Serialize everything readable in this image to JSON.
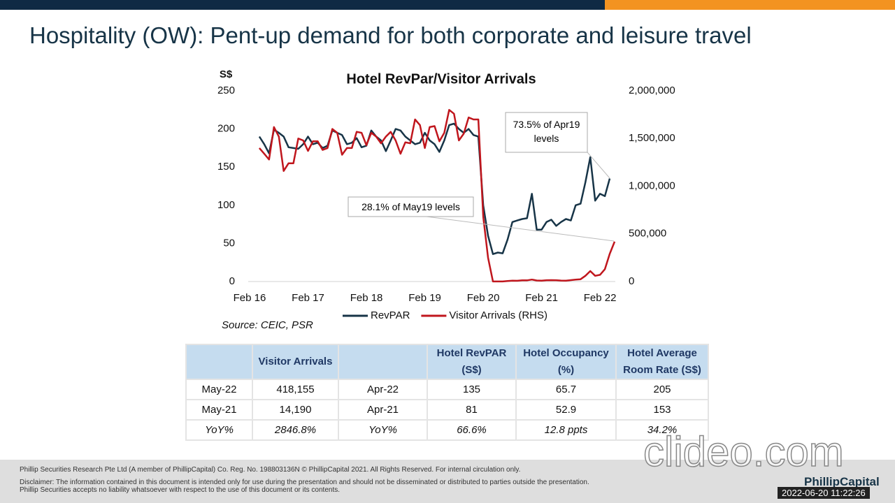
{
  "slide": {
    "title": "Hospitality (OW): Pent-up demand for both corporate and leisure travel"
  },
  "chart_data": {
    "type": "line",
    "title": "Hotel RevPar/Visitor Arrivals",
    "y_label": "S$",
    "source": "Source: CEIC, PSR",
    "x": [
      "2016-04",
      "2016-05",
      "2016-06",
      "2016-07",
      "2016-08",
      "2016-09",
      "2016-10",
      "2016-11",
      "2016-12",
      "2017-01",
      "2017-02",
      "2017-03",
      "2017-04",
      "2017-05",
      "2017-06",
      "2017-07",
      "2017-08",
      "2017-09",
      "2017-10",
      "2017-11",
      "2017-12",
      "2018-01",
      "2018-02",
      "2018-03",
      "2018-04",
      "2018-05",
      "2018-06",
      "2018-07",
      "2018-08",
      "2018-09",
      "2018-10",
      "2018-11",
      "2018-12",
      "2019-01",
      "2019-02",
      "2019-03",
      "2019-04",
      "2019-05",
      "2019-06",
      "2019-07",
      "2019-08",
      "2019-09",
      "2019-10",
      "2019-11",
      "2019-12",
      "2020-01",
      "2020-02",
      "2020-03",
      "2020-04",
      "2020-05",
      "2020-06",
      "2020-07",
      "2020-08",
      "2020-09",
      "2020-10",
      "2020-11",
      "2020-12",
      "2021-01",
      "2021-02",
      "2021-03",
      "2021-04",
      "2021-05",
      "2021-06",
      "2021-07",
      "2021-08",
      "2021-09",
      "2021-10",
      "2021-11",
      "2021-12",
      "2022-01",
      "2022-02",
      "2022-03",
      "2022-04",
      "2022-05"
    ],
    "xlim": [
      "2016-02",
      "2022-05"
    ],
    "xticks": [
      {
        "value": "2016-02",
        "label": "Feb 16"
      },
      {
        "value": "2017-02",
        "label": "Feb 17"
      },
      {
        "value": "2018-02",
        "label": "Feb 18"
      },
      {
        "value": "2019-02",
        "label": "Feb 19"
      },
      {
        "value": "2020-02",
        "label": "Feb 20"
      },
      {
        "value": "2021-02",
        "label": "Feb 21"
      },
      {
        "value": "2022-02",
        "label": "Feb 22"
      }
    ],
    "ylim": [
      0,
      250
    ],
    "yticks": [
      0,
      50,
      100,
      150,
      200,
      250
    ],
    "y2lim": [
      0,
      2000000
    ],
    "y2ticks": [
      0,
      {
        "value": 500000,
        "label": "500,000"
      },
      {
        "value": 1000000,
        "label": "1,000,000"
      },
      {
        "value": 1500000,
        "label": "1,500,000"
      },
      {
        "value": 2000000,
        "label": "2,000,000"
      }
    ],
    "series": [
      {
        "name": "RevPAR",
        "color": "#173447",
        "values": [
          190,
          180,
          168,
          199,
          195,
          190,
          176,
          175,
          174,
          180,
          190,
          180,
          182,
          175,
          178,
          198,
          195,
          192,
          180,
          182,
          188,
          176,
          178,
          198,
          190,
          185,
          171,
          185,
          200,
          198,
          190,
          185,
          180,
          182,
          195,
          185,
          180,
          170,
          185,
          205,
          207,
          200,
          195,
          200,
          192,
          190,
          100,
          60,
          36,
          38,
          37,
          55,
          78,
          80,
          82,
          83,
          115,
          68,
          68,
          78,
          81,
          73,
          78,
          82,
          80,
          100,
          102,
          130,
          163,
          106,
          115,
          112,
          135,
          null
        ]
      },
      {
        "name": "Visitor Arrivals (RHS)",
        "color": "#c0161d",
        "axis": "y2",
        "values": [
          1400000,
          1340000,
          1280000,
          1620000,
          1520000,
          1160000,
          1240000,
          1240000,
          1500000,
          1480000,
          1370000,
          1470000,
          1470000,
          1380000,
          1400000,
          1600000,
          1560000,
          1330000,
          1400000,
          1400000,
          1570000,
          1560000,
          1430000,
          1560000,
          1520000,
          1450000,
          1520000,
          1570000,
          1480000,
          1340000,
          1460000,
          1450000,
          1700000,
          1640000,
          1400000,
          1620000,
          1630000,
          1470000,
          1560000,
          1800000,
          1760000,
          1480000,
          1550000,
          1720000,
          1700000,
          1700000,
          680000,
          250000,
          800,
          900,
          900,
          5800,
          9600,
          7900,
          13400,
          12400,
          20500,
          11000,
          9000,
          14000,
          15000,
          14190,
          10000,
          9000,
          15000,
          20000,
          24000,
          60000,
          110000,
          60000,
          70000,
          130000,
          290000,
          418155
        ]
      }
    ],
    "legend": "bottom",
    "annotations": [
      {
        "text": "73.5% of Apr19 levels"
      },
      {
        "text": "28.1% of May19 levels"
      }
    ]
  },
  "table": {
    "header": [
      null,
      "Visitor Arrivals",
      null,
      "Hotel RevPAR (S$)",
      "Hotel Occupancy (%)",
      "Hotel Average Room Rate (S$)"
    ],
    "rows": [
      [
        "May-22",
        "418,155",
        "Apr-22",
        "135",
        "65.7",
        "205"
      ],
      [
        "May-21",
        "14,190",
        "Apr-21",
        "81",
        "52.9",
        "153"
      ],
      [
        "YoY%",
        "2846.8%",
        "YoY%",
        "66.6%",
        "12.8 ppts",
        "34.2%"
      ]
    ]
  },
  "footer": {
    "copyright": "Phillip Securities Research Pte Ltd (A member of PhillipCapital) Co. Reg. No. 198803136N © PhillipCapital 2021.  All Rights Reserved. For internal circulation only.",
    "disclaimer": [
      "Disclaimer: The information contained in this document is intended only for use during the presentation and should not be disseminated or distributed to parties outside the presentation.",
      "Phillip Securities accepts no liability whatsoever with respect to the use of this document or its contents."
    ]
  },
  "watermark": "clideo.com",
  "logo": "PhillipCapital",
  "timestamp": "2022-06-20 11:22:26"
}
